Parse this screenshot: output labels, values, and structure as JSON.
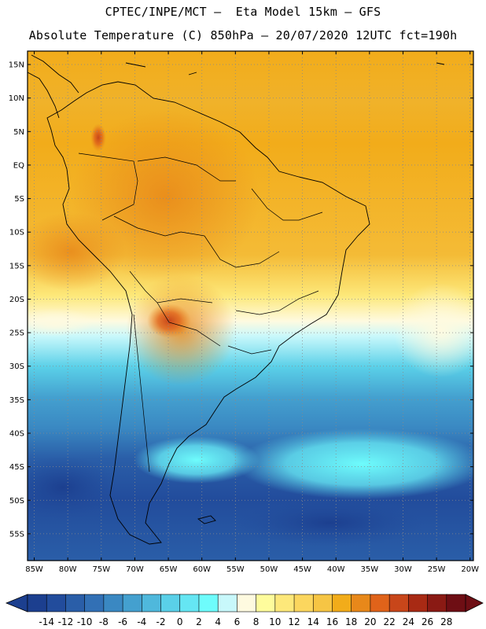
{
  "header": {
    "line1": "CPTEC/INPE/MCT –  Eta Model 15km – GFS",
    "line2": "Absolute Temperature (C) 850hPa – 20/07/2020 12UTC fct=190h"
  },
  "map": {
    "lon_range": [
      -86,
      -19.5
    ],
    "lat_range": [
      -59,
      17
    ],
    "lat_ticks": [
      "15N",
      "10N",
      "5N",
      "EQ",
      "5S",
      "10S",
      "15S",
      "20S",
      "25S",
      "30S",
      "35S",
      "40S",
      "45S",
      "50S",
      "55S"
    ],
    "lon_ticks": [
      "85W",
      "80W",
      "75W",
      "70W",
      "65W",
      "60W",
      "55W",
      "50W",
      "45W",
      "40W",
      "35W",
      "30W",
      "25W",
      "20W"
    ],
    "grid": "dotted"
  },
  "colorbar": {
    "labels": [
      "-14",
      "-12",
      "-10",
      "-8",
      "-6",
      "-4",
      "-2",
      "0",
      "2",
      "4",
      "6",
      "8",
      "10",
      "12",
      "14",
      "16",
      "18",
      "20",
      "22",
      "24",
      "26",
      "28"
    ],
    "colors": [
      "#1c3f8f",
      "#224c9c",
      "#2a5ea8",
      "#3270b5",
      "#3a88c2",
      "#44a0cf",
      "#4fb8dc",
      "#5ad0e8",
      "#65e6f3",
      "#6efcfc",
      "#c8f8fb",
      "#fefae0",
      "#fefc9c",
      "#fde87a",
      "#fbd65e",
      "#f6c544",
      "#f2ac1a",
      "#e8881a",
      "#e0631a",
      "#c8461a",
      "#a82a14",
      "#8a1a14",
      "#6e0e14"
    ]
  }
}
